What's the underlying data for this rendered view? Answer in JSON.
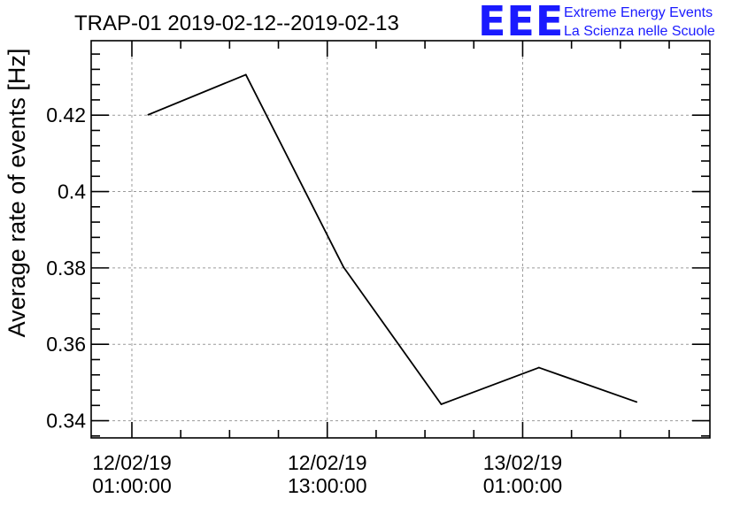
{
  "header": {
    "title": "TRAP-01 2019-02-12--2019-02-13"
  },
  "logo": {
    "mark": "EEE",
    "line1": "Extreme Energy Events",
    "line2": "La Scienza nelle Scuole",
    "color": "#1a1aff"
  },
  "chart_data": {
    "type": "line",
    "title": "TRAP-01 2019-02-12--2019-02-13",
    "xlabel": "",
    "ylabel": "Average rate of events [Hz]",
    "x": [
      "2019-02-12 02:00:00",
      "2019-02-12 08:00:00",
      "2019-02-12 14:00:00",
      "2019-02-12 20:00:00",
      "2019-02-13 02:00:00",
      "2019-02-13 08:00:00"
    ],
    "series": [
      {
        "values": [
          0.4201,
          0.4306,
          0.3802,
          0.3443,
          0.3539,
          0.3449
        ],
        "color": "#000000"
      }
    ],
    "xlim": [
      "2019-02-11 22:30:00",
      "2019-02-13 12:30:00"
    ],
    "ylim": [
      0.3355,
      0.4395
    ],
    "x_ticks": [
      {
        "value": "2019-02-12 01:00:00",
        "line1": "12/02/19",
        "line2": "01:00:00"
      },
      {
        "value": "2019-02-12 13:00:00",
        "line1": "12/02/19",
        "line2": "13:00:00"
      },
      {
        "value": "2019-02-13 01:00:00",
        "line1": "13/02/19",
        "line2": "01:00:00"
      }
    ],
    "x_minor_ticks": [
      "2019-02-12 04:00:00",
      "2019-02-12 07:00:00",
      "2019-02-12 10:00:00",
      "2019-02-12 16:00:00",
      "2019-02-12 19:00:00",
      "2019-02-12 22:00:00",
      "2019-02-13 04:00:00",
      "2019-02-13 07:00:00",
      "2019-02-13 10:00:00"
    ],
    "y_ticks": [
      0.34,
      0.36,
      0.38,
      0.4,
      0.42
    ],
    "y_tick_labels": [
      "0.34",
      "0.36",
      "0.38",
      "0.4",
      "0.42"
    ],
    "y_minor_ticks": [
      0.336,
      0.344,
      0.348,
      0.352,
      0.356,
      0.364,
      0.368,
      0.372,
      0.376,
      0.384,
      0.388,
      0.392,
      0.396,
      0.404,
      0.408,
      0.412,
      0.416,
      0.424,
      0.428,
      0.432,
      0.436
    ],
    "grid": true,
    "grid_color": "#9a9a9a",
    "line_color": "#000000"
  }
}
